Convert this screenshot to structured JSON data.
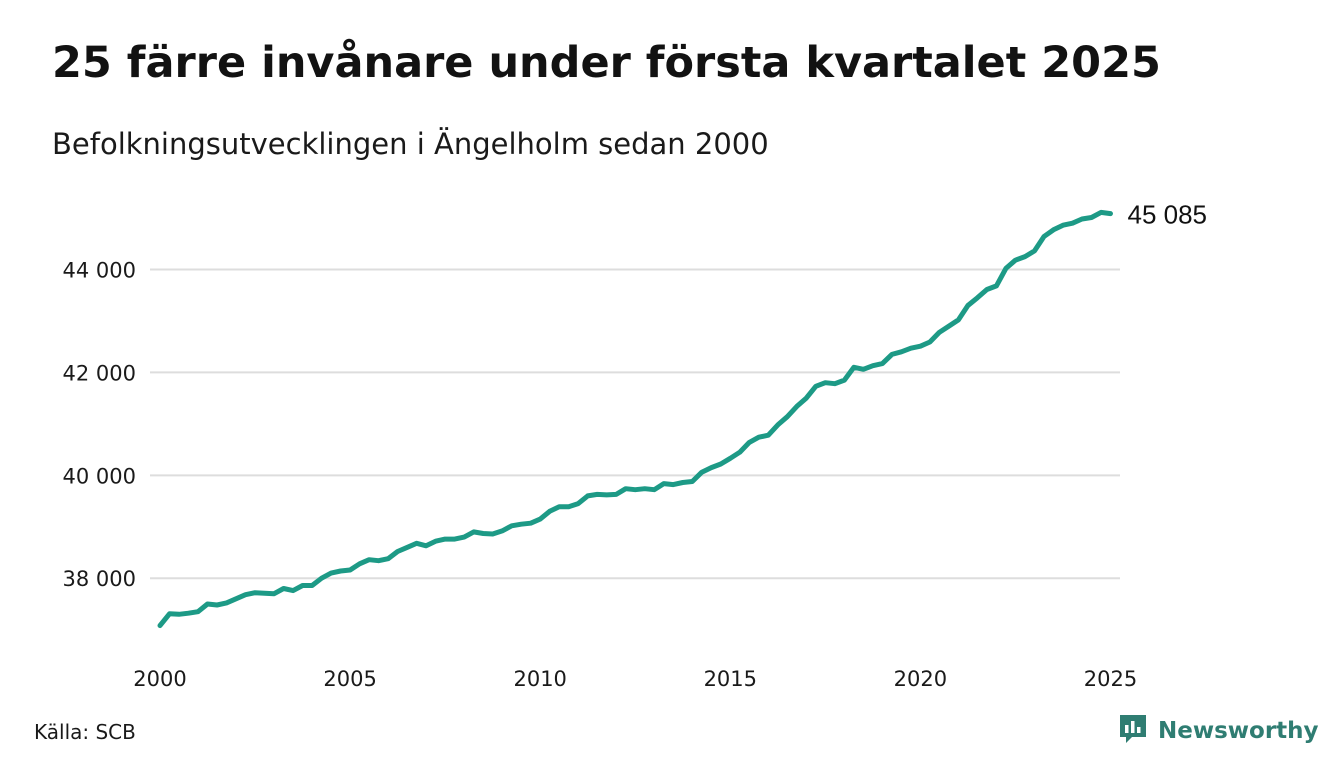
{
  "title": "25 färre invånare under första kvartalet 2025",
  "subtitle": "Befolkningsutvecklingen i Ängelholm sedan 2000",
  "source": "Källa: SCB",
  "brand": {
    "name": "Newsworthy",
    "color": "#2f7d72",
    "icon": "newsworthy-bar-chart-icon"
  },
  "colors": {
    "line": "#1d9a86",
    "grid": "#dddddd"
  },
  "chart_data": {
    "type": "line",
    "title": "25 färre invånare under första kvartalet 2025",
    "subtitle": "Befolkningsutvecklingen i Ängelholm sedan 2000",
    "xlabel": "",
    "ylabel": "",
    "xlim": [
      2000,
      2025.25
    ],
    "ylim": [
      36800,
      45350
    ],
    "grid": true,
    "x_ticks": [
      2000,
      2005,
      2010,
      2015,
      2020,
      2025
    ],
    "x_tick_labels": [
      "2000",
      "2005",
      "2010",
      "2015",
      "2020",
      "2025"
    ],
    "y_ticks": [
      38000,
      40000,
      42000,
      44000
    ],
    "y_tick_labels": [
      "38 000",
      "40 000",
      "42 000",
      "44 000"
    ],
    "end_label": "45 085",
    "series": [
      {
        "x": [
          2000.0,
          2000.25,
          2000.5,
          2000.75,
          2001.0,
          2001.25,
          2001.5,
          2001.75,
          2002.0,
          2002.25,
          2002.5,
          2002.75,
          2003.0,
          2003.25,
          2003.5,
          2003.75,
          2004.0,
          2004.25,
          2004.5,
          2004.75,
          2005.0,
          2005.25,
          2005.5,
          2005.75,
          2006.0,
          2006.25,
          2006.5,
          2006.75,
          2007.0,
          2007.25,
          2007.5,
          2007.75,
          2008.0,
          2008.25,
          2008.5,
          2008.75,
          2009.0,
          2009.25,
          2009.5,
          2009.75,
          2010.0,
          2010.25,
          2010.5,
          2010.75,
          2011.0,
          2011.25,
          2011.5,
          2011.75,
          2012.0,
          2012.25,
          2012.5,
          2012.75,
          2013.0,
          2013.25,
          2013.5,
          2013.75,
          2014.0,
          2014.25,
          2014.5,
          2014.75,
          2015.0,
          2015.25,
          2015.5,
          2015.75,
          2016.0,
          2016.25,
          2016.5,
          2016.75,
          2017.0,
          2017.25,
          2017.5,
          2017.75,
          2018.0,
          2018.25,
          2018.5,
          2018.75,
          2019.0,
          2019.25,
          2019.5,
          2019.75,
          2020.0,
          2020.25,
          2020.5,
          2020.75,
          2021.0,
          2021.25,
          2021.5,
          2021.75,
          2022.0,
          2022.25,
          2022.5,
          2022.75,
          2023.0,
          2023.25,
          2023.5,
          2023.75,
          2024.0,
          2024.25,
          2024.5,
          2024.75,
          2025.0
        ],
        "values": [
          37080,
          37310,
          37300,
          37320,
          37350,
          37500,
          37480,
          37520,
          37600,
          37680,
          37720,
          37710,
          37700,
          37800,
          37760,
          37860,
          37860,
          38000,
          38100,
          38140,
          38160,
          38280,
          38360,
          38340,
          38380,
          38520,
          38600,
          38680,
          38630,
          38720,
          38760,
          38760,
          38800,
          38900,
          38870,
          38860,
          38920,
          39020,
          39050,
          39070,
          39150,
          39300,
          39390,
          39390,
          39450,
          39600,
          39630,
          39620,
          39630,
          39740,
          39720,
          39740,
          39720,
          39840,
          39820,
          39860,
          39880,
          40060,
          40150,
          40220,
          40330,
          40450,
          40640,
          40740,
          40780,
          40980,
          41140,
          41340,
          41500,
          41730,
          41800,
          41780,
          41850,
          42100,
          42060,
          42130,
          42170,
          42350,
          42400,
          42470,
          42510,
          42590,
          42780,
          42900,
          43020,
          43300,
          43450,
          43610,
          43680,
          44020,
          44180,
          44250,
          44360,
          44640,
          44770,
          44860,
          44900,
          44980,
          45010,
          45110,
          45085
        ]
      }
    ]
  }
}
